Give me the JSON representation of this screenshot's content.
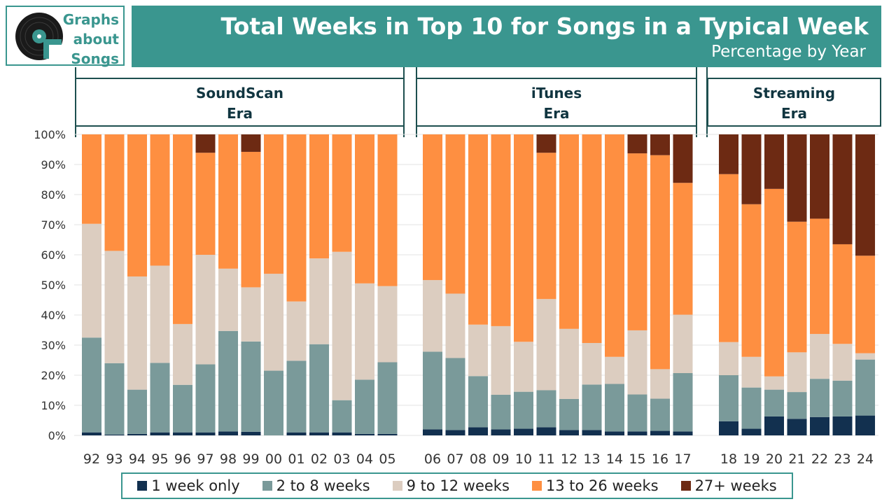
{
  "logo": {
    "line1": "Graphs",
    "line2": "about",
    "line3": "Songs"
  },
  "header": {
    "title": "Total Weeks in Top 10 for Songs in a Typical Week",
    "subtitle": "Percentage by Year"
  },
  "eras": [
    {
      "line1": "SoundScan",
      "line2": "Era"
    },
    {
      "line1": "iTunes",
      "line2": "Era"
    },
    {
      "line1": "Streaming",
      "line2": "Era"
    }
  ],
  "colors": {
    "one_week": "#12304f",
    "two_to_eight": "#7a9a9a",
    "nine_to_twelve": "#dccdc0",
    "thirteen_to_26": "#fe8f41",
    "twentyseven_plus": "#6d2a13",
    "accent": "#3a968f"
  },
  "legend": [
    {
      "label": "1 week only",
      "color": "#12304f"
    },
    {
      "label": "2 to 8 weeks",
      "color": "#7a9a9a"
    },
    {
      "label": "9 to 12 weeks",
      "color": "#dccdc0"
    },
    {
      "label": "13 to 26 weeks",
      "color": "#fe8f41"
    },
    {
      "label": "27+ weeks",
      "color": "#6d2a13"
    }
  ],
  "chart_data": {
    "type": "bar",
    "stacked": true,
    "title": "Total Weeks in Top 10 for Songs in a Typical Week",
    "subtitle": "Percentage by Year",
    "ylim": [
      0,
      100
    ],
    "yticks": [
      "0%",
      "10%",
      "20%",
      "30%",
      "40%",
      "50%",
      "60%",
      "70%",
      "80%",
      "90%",
      "100%"
    ],
    "categories": [
      "92",
      "93",
      "94",
      "95",
      "96",
      "97",
      "98",
      "99",
      "00",
      "01",
      "02",
      "03",
      "04",
      "05",
      "06",
      "07",
      "08",
      "09",
      "10",
      "11",
      "12",
      "13",
      "14",
      "15",
      "16",
      "17",
      "18",
      "19",
      "20",
      "21",
      "22",
      "23",
      "24"
    ],
    "groups": [
      {
        "name": "SoundScan Era",
        "categories": [
          "92",
          "93",
          "94",
          "95",
          "96",
          "97",
          "98",
          "99",
          "00",
          "01",
          "02",
          "03",
          "04",
          "05"
        ]
      },
      {
        "name": "iTunes Era",
        "categories": [
          "06",
          "07",
          "08",
          "09",
          "10",
          "11",
          "12",
          "13",
          "14",
          "15",
          "16",
          "17"
        ]
      },
      {
        "name": "Streaming Era",
        "categories": [
          "18",
          "19",
          "20",
          "21",
          "22",
          "23",
          "24"
        ]
      }
    ],
    "series": [
      {
        "name": "1 week only",
        "values": [
          1,
          0.3,
          0.5,
          1,
          1,
          1,
          1.3,
          1.2,
          0,
          1,
          1,
          1,
          0.5,
          0.5,
          2,
          1.8,
          2.7,
          2,
          2.2,
          2.7,
          1.8,
          1.8,
          1.3,
          1.3,
          1.5,
          1.3,
          4.7,
          2.2,
          6.3,
          5.5,
          6.1,
          6.3,
          6.6
        ]
      },
      {
        "name": "2 to 8 weeks",
        "values": [
          31.5,
          23.7,
          14.7,
          23.1,
          15.8,
          22.6,
          33.4,
          30,
          21.5,
          23.8,
          29.3,
          10.7,
          18,
          23.8,
          25.8,
          23.9,
          17,
          11.5,
          12.3,
          12.3,
          10.3,
          15.1,
          15.8,
          12.3,
          10.7,
          19.4,
          15.3,
          13.7,
          8.9,
          8.9,
          12.7,
          11.9,
          18.6
        ]
      },
      {
        "name": "9 to 12 weeks",
        "values": [
          37.8,
          37.3,
          37.6,
          32.3,
          20.2,
          36.4,
          20.7,
          18,
          32.2,
          19.7,
          28.5,
          49.3,
          32,
          25.3,
          23.8,
          21.4,
          17.1,
          22.8,
          16.6,
          30.3,
          23.3,
          13.8,
          9,
          21.3,
          9.8,
          19.4,
          11,
          10.2,
          4.4,
          13.2,
          14.9,
          12.2,
          2.1
        ]
      },
      {
        "name": "13 to 26 weeks",
        "values": [
          29.7,
          38.7,
          47.2,
          43.6,
          63,
          33.9,
          44.6,
          45,
          46.3,
          55.5,
          41.2,
          39,
          49.5,
          50.4,
          48.4,
          52.9,
          63.2,
          63.7,
          68.9,
          48.6,
          64.6,
          69.3,
          73.9,
          58.8,
          71.1,
          43.8,
          55.8,
          50.7,
          62.3,
          43.4,
          38.3,
          33.1,
          32.4
        ]
      },
      {
        "name": "27+ weeks",
        "values": [
          0,
          0,
          0,
          0,
          0,
          6.1,
          0,
          5.8,
          0,
          0,
          0,
          0,
          0,
          0,
          0,
          0,
          0,
          0,
          0,
          6.1,
          0,
          0,
          0,
          6.3,
          6.9,
          16.1,
          13.2,
          23.2,
          18.1,
          29,
          28,
          36.5,
          40.3
        ]
      }
    ],
    "xlabel": "",
    "ylabel": "",
    "legend_position": "bottom"
  }
}
